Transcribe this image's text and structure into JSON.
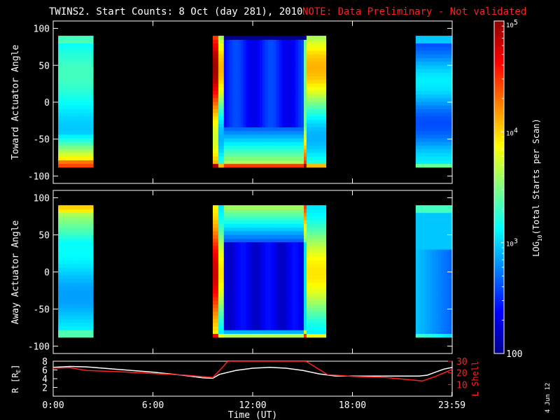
{
  "title": {
    "main": "TWINS2. Start Counts: 8 Oct (day 281), 2010",
    "note": "NOTE: Data Preliminary - Not validated",
    "note_color": "#ff2020"
  },
  "footer_date": "4 Jun 12",
  "colors": {
    "background": "#000000",
    "axes": "#ffffff",
    "trace_r": "#ffffff",
    "trace_lshell": "#ff2020",
    "colorbar_scale": [
      "#00008f",
      "#0000ff",
      "#0080ff",
      "#00ffff",
      "#80ff80",
      "#ffff00",
      "#ff8000",
      "#ff0000",
      "#8f0000"
    ]
  },
  "chart_data": [
    {
      "type": "heatmap",
      "name": "toward-panel",
      "ylabel": "Toward Actuator Angle",
      "ylim": [
        -110,
        110
      ],
      "yticks": [
        "100",
        "50",
        "0",
        "-50",
        "-100"
      ],
      "ytick_values": [
        100,
        50,
        0,
        -50,
        -100
      ],
      "xlim_hours": [
        0,
        24
      ],
      "data_intervals_hours": [
        [
          0.3,
          2.4
        ],
        [
          9.6,
          16.4
        ],
        [
          21.8,
          24.0
        ]
      ],
      "data_angle_range": [
        -88,
        90
      ],
      "color_range_log10": [
        2,
        5
      ],
      "description_levels": "low counts (blue) near +50 to -50 during 10-15 UT, high counts (orange/red) near -85"
    },
    {
      "type": "heatmap",
      "name": "away-panel",
      "ylabel": "Away Actuator Angle",
      "ylim": [
        -110,
        110
      ],
      "yticks": [
        "100",
        "50",
        "0",
        "-50",
        "-100"
      ],
      "ytick_values": [
        100,
        50,
        0,
        -50,
        -100
      ],
      "xlim_hours": [
        0,
        24
      ],
      "data_intervals_hours": [
        [
          0.3,
          2.4
        ],
        [
          9.6,
          16.4
        ],
        [
          21.8,
          24.0
        ]
      ],
      "data_angle_range": [
        -88,
        90
      ],
      "color_range_log10": [
        2,
        5
      ]
    },
    {
      "type": "line",
      "name": "ephemeris-panel",
      "ylabel_left": "R [R",
      "ylabel_left_sub": "E",
      "ylabel_left_end": "]",
      "ylabel_right": "L Shell",
      "yticks_left": [
        "8",
        "6",
        "4",
        "2"
      ],
      "ytick_left_values": [
        8,
        6,
        4,
        2
      ],
      "yticks_right": [
        "30",
        "20",
        "10"
      ],
      "ytick_right_values": [
        30,
        20,
        10
      ],
      "ylim_left": [
        0,
        8
      ],
      "ylim_right": [
        0,
        30
      ],
      "xlabel": "Time (UT)",
      "xticks": [
        "0:00",
        "6:00",
        "12:00",
        "18:00",
        "23:59"
      ],
      "xtick_values": [
        0,
        6,
        12,
        18,
        23.98
      ],
      "series": [
        {
          "name": "R",
          "axis": "left",
          "x": [
            0,
            1,
            2,
            3,
            4,
            5,
            6,
            7,
            8,
            9,
            9.6,
            10,
            11,
            12,
            13,
            14,
            15,
            16,
            17,
            18,
            19,
            20,
            21,
            22,
            22.5,
            23,
            23.5,
            24
          ],
          "y": [
            6.6,
            6.8,
            6.7,
            6.4,
            6.1,
            5.8,
            5.5,
            5.1,
            4.7,
            4.2,
            4.1,
            5.0,
            5.9,
            6.4,
            6.6,
            6.4,
            5.9,
            5.1,
            4.6,
            4.6,
            4.6,
            4.6,
            4.6,
            4.6,
            4.8,
            5.5,
            6.2,
            6.6
          ]
        },
        {
          "name": "L Shell",
          "axis": "right",
          "x": [
            0,
            1,
            2,
            4,
            6,
            8,
            9.6,
            10.2,
            10.5,
            15.2,
            16.5,
            17,
            18,
            20,
            22.2,
            23,
            24
          ],
          "y": [
            24,
            24.5,
            22,
            21,
            19.5,
            18,
            16,
            25,
            30,
            30,
            18.5,
            18,
            17,
            16,
            13,
            17,
            23
          ]
        }
      ]
    }
  ],
  "colorbar": {
    "label": "LOG",
    "label_sub": "10",
    "label_end": "(Total Starts per Scan)",
    "ticks": [
      {
        "base": "10",
        "exp": "5",
        "value_log10": 5
      },
      {
        "base": "10",
        "exp": "4",
        "value_log10": 4
      },
      {
        "base": "10",
        "exp": "3",
        "value_log10": 3
      },
      {
        "base": "100",
        "exp": "",
        "value_log10": 2
      }
    ],
    "range_log10": [
      2,
      5
    ]
  }
}
